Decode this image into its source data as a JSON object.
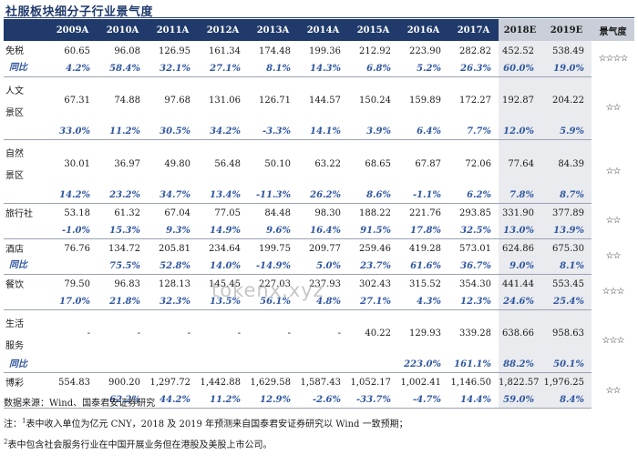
{
  "title": "社服板块细分子行业景气度",
  "headers": [
    "",
    "2009A",
    "2010A",
    "2011A",
    "2012A",
    "2013A",
    "2014A",
    "2015A",
    "2016A",
    "2017A",
    "2018E",
    "2019E",
    "景气度"
  ],
  "rows": [
    {
      "name": [
        "免税"
      ],
      "values": [
        "60.65",
        "96.08",
        "126.95",
        "161.34",
        "174.48",
        "199.36",
        "212.92",
        "223.90",
        "282.82",
        "452.52",
        "538.49"
      ],
      "pct_label": "同比",
      "pct": [
        "4.2%",
        "58.4%",
        "32.1%",
        "27.1%",
        "8.1%",
        "14.3%",
        "6.8%",
        "5.2%",
        "26.3%",
        "60.0%",
        "19.0%"
      ],
      "stars": "☆☆☆☆"
    },
    {
      "name": [
        "人文",
        "景区"
      ],
      "values": [
        "67.31",
        "74.88",
        "97.68",
        "131.06",
        "126.71",
        "144.57",
        "150.24",
        "159.89",
        "172.27",
        "192.87",
        "204.22"
      ],
      "pct_label": "",
      "pct": [
        "33.0%",
        "11.2%",
        "30.5%",
        "34.2%",
        "-3.3%",
        "14.1%",
        "3.9%",
        "6.4%",
        "7.7%",
        "12.0%",
        "5.9%"
      ],
      "stars": "☆☆"
    },
    {
      "name": [
        "自然",
        "景区"
      ],
      "values": [
        "30.01",
        "36.97",
        "49.80",
        "56.48",
        "50.10",
        "63.22",
        "68.65",
        "67.87",
        "72.06",
        "77.64",
        "84.39"
      ],
      "pct_label": "",
      "pct": [
        "14.2%",
        "23.2%",
        "34.7%",
        "13.4%",
        "-11.3%",
        "26.2%",
        "8.6%",
        "-1.1%",
        "6.2%",
        "7.8%",
        "8.7%"
      ],
      "stars": "☆☆"
    },
    {
      "name": [
        "旅行社"
      ],
      "values": [
        "53.18",
        "61.32",
        "67.04",
        "77.05",
        "84.48",
        "98.30",
        "188.22",
        "221.76",
        "293.85",
        "331.90",
        "377.89"
      ],
      "pct_label": "",
      "pct": [
        "-1.0%",
        "15.3%",
        "9.3%",
        "14.9%",
        "9.6%",
        "16.4%",
        "91.5%",
        "17.8%",
        "32.5%",
        "13.0%",
        "13.9%"
      ],
      "stars": "☆☆"
    },
    {
      "name": [
        "酒店"
      ],
      "values": [
        "76.76",
        "134.72",
        "205.81",
        "234.64",
        "199.75",
        "209.77",
        "259.46",
        "419.28",
        "573.01",
        "624.86",
        "675.30"
      ],
      "pct_label": "同比",
      "pct": [
        "",
        "75.5%",
        "52.8%",
        "14.0%",
        "-14.9%",
        "5.0%",
        "23.7%",
        "61.6%",
        "36.7%",
        "9.0%",
        "8.1%"
      ],
      "stars": "☆☆"
    },
    {
      "name": [
        "餐饮"
      ],
      "values": [
        "79.50",
        "96.83",
        "128.13",
        "145.45",
        "227.03",
        "237.93",
        "302.43",
        "315.52",
        "354.30",
        "441.44",
        "553.45"
      ],
      "pct_label": "",
      "pct": [
        "17.0%",
        "21.8%",
        "32.3%",
        "13.5%",
        "56.1%",
        "4.8%",
        "27.1%",
        "4.3%",
        "12.3%",
        "24.6%",
        "25.4%"
      ],
      "stars": "☆☆☆"
    },
    {
      "name": [
        "生活",
        "服务"
      ],
      "values": [
        "-",
        "-",
        "-",
        "-",
        "-",
        "-",
        "40.22",
        "129.93",
        "339.28",
        "638.66",
        "958.63"
      ],
      "pct_label": "同比",
      "pct": [
        "",
        "",
        "",
        "",
        "",
        "",
        "",
        "223.0%",
        "161.1%",
        "88.2%",
        "50.1%"
      ],
      "stars": "☆☆☆"
    },
    {
      "name": [
        "博彩"
      ],
      "values": [
        "554.83",
        "900.20",
        "1,297.72",
        "1,442.88",
        "1,629.58",
        "1,587.43",
        "1,052.17",
        "1,002.41",
        "1,146.50",
        "1,822.57",
        "1,976.25"
      ],
      "pct_label": "",
      "pct": [
        "",
        "62.2%",
        "44.2%",
        "11.2%",
        "12.9%",
        "-2.6%",
        "-33.7%",
        "-4.7%",
        "14.4%",
        "59.0%",
        "8.4%"
      ],
      "stars": "☆☆"
    }
  ],
  "footnotes": {
    "source": "数据来源：Wind、国泰君安证券研究",
    "note1_prefix": "注：",
    "note1_sup": "1",
    "note1": "表中收入单位为亿元 CNY，2018 及 2019 年预测来自国泰君安证券研究以 Wind 一致预期；",
    "note2_sup": "2",
    "note2": "表中包含社会服务行业在中国开展业务但在港股及美股上市公司。"
  },
  "watermark": "tokenx.xyz",
  "colors": {
    "header_bg": "#1f3a6b",
    "estimate_bg": "#e9ebef",
    "pct_text": "#2f56a0"
  }
}
